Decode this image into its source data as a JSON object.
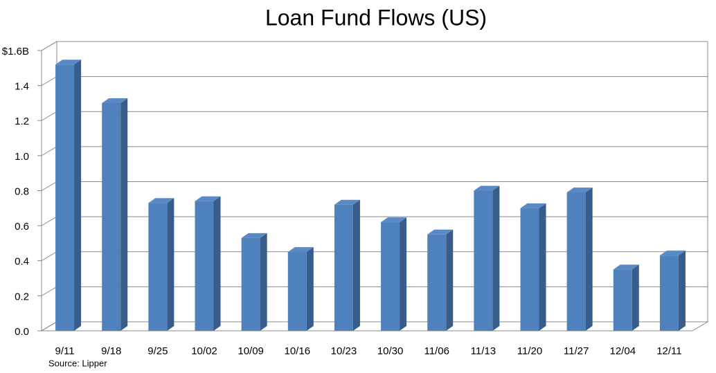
{
  "chart_data": {
    "type": "bar3d",
    "title": "Loan Fund Flows (US)",
    "source": "Source: Lipper",
    "categories": [
      "9/11",
      "9/18",
      "9/25",
      "10/02",
      "10/09",
      "10/16",
      "10/23",
      "10/30",
      "11/06",
      "11/13",
      "11/20",
      "11/27",
      "12/04",
      "12/11"
    ],
    "values": [
      1.52,
      1.3,
      0.73,
      0.74,
      0.53,
      0.45,
      0.72,
      0.62,
      0.55,
      0.8,
      0.7,
      0.79,
      0.35,
      0.43
    ],
    "color": "#4f81bd",
    "side_color": "#385d8a",
    "top_color": "#5a8ac6",
    "ylim": [
      0,
      1.6
    ],
    "yticks": [
      {
        "value": 0,
        "label": "0.0"
      },
      0.2,
      0.4,
      0.6,
      0.8,
      {
        "value": 1,
        "label": "1.0"
      },
      1.2,
      1.4,
      {
        "value": 1.6,
        "label": "$1.6B"
      }
    ],
    "grid": true
  }
}
